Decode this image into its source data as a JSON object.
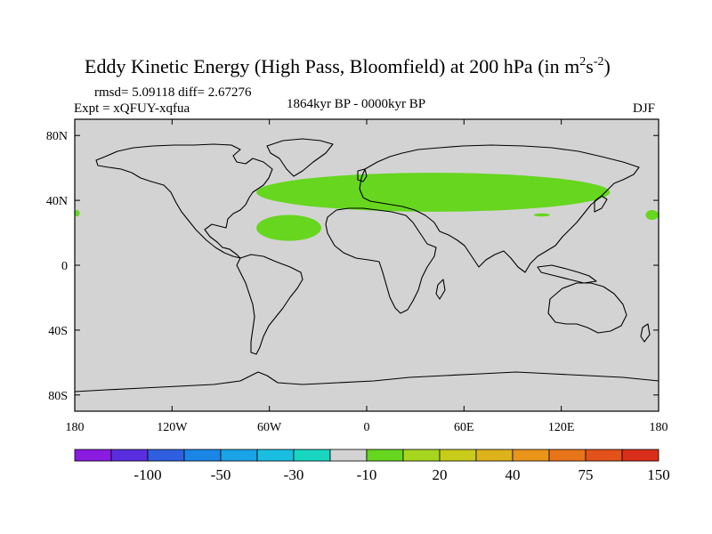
{
  "chart_data": {
    "type": "heatmap",
    "title": "Eddy Kinetic Energy (High Pass, Bloomfield) at 200 hPa (in m",
    "title_units_base": "s",
    "title_sup1": "2",
    "title_sup2": "-2",
    "title_close": ")",
    "stats": "rmsd= 5.09118 diff= 2.67276",
    "experiment": "Expt = xQFUY-xqfua",
    "period": "1864kyr BP - 0000kyr BP",
    "season": "DJF",
    "x_ticks": [
      "180",
      "120W",
      "60W",
      "0",
      "60E",
      "120E",
      "180"
    ],
    "x_tick_values": [
      -180,
      -120,
      -60,
      0,
      60,
      120,
      180
    ],
    "y_ticks": [
      "80N",
      "40N",
      "0",
      "40S",
      "80S"
    ],
    "y_tick_values": [
      80,
      40,
      0,
      -40,
      -80
    ],
    "xlim": [
      -180,
      180
    ],
    "ylim": [
      -90,
      90
    ],
    "background_color": "#d3d3d3",
    "colorbar": {
      "colors": [
        "#8a1be0",
        "#5a2ee0",
        "#2f5fe0",
        "#1a86e6",
        "#1aa3e6",
        "#1abee0",
        "#19d6c0",
        "#d3d3d3",
        "#66d61e",
        "#a6d61e",
        "#c8cc1a",
        "#ddb21a",
        "#e8951a",
        "#e8741a",
        "#e3521a",
        "#d92e1a"
      ],
      "labels": [
        "-100",
        "-50",
        "-30",
        "-10",
        "20",
        "40",
        "75",
        "150"
      ],
      "label_boundaries": [
        2,
        4,
        6,
        8,
        10,
        12,
        14,
        16
      ]
    },
    "regions": [
      {
        "name": "north-hemisphere-storm-track",
        "level": "10 to 20",
        "color": "#66d61e",
        "lon_range": [
          -68,
          150
        ],
        "lat_range": [
          33,
          57
        ]
      },
      {
        "name": "north-atlantic-subtropical-patch",
        "level": "10 to 20",
        "color": "#66d61e",
        "lon_range": [
          -68,
          -28
        ],
        "lat_range": [
          15,
          31
        ]
      },
      {
        "name": "dateline-west-edge-patch",
        "level": "10 to 20",
        "color": "#66d61e",
        "lon_range": [
          -180,
          -177
        ],
        "lat_range": [
          30,
          34
        ]
      },
      {
        "name": "dateline-east-edge-patch",
        "level": "10 to 20",
        "color": "#66d61e",
        "lon_range": [
          172,
          180
        ],
        "lat_range": [
          28,
          34
        ]
      },
      {
        "name": "china-small-patch",
        "level": "10 to 20",
        "color": "#66d61e",
        "lon_range": [
          103,
          113
        ],
        "lat_range": [
          30,
          32
        ]
      }
    ]
  }
}
